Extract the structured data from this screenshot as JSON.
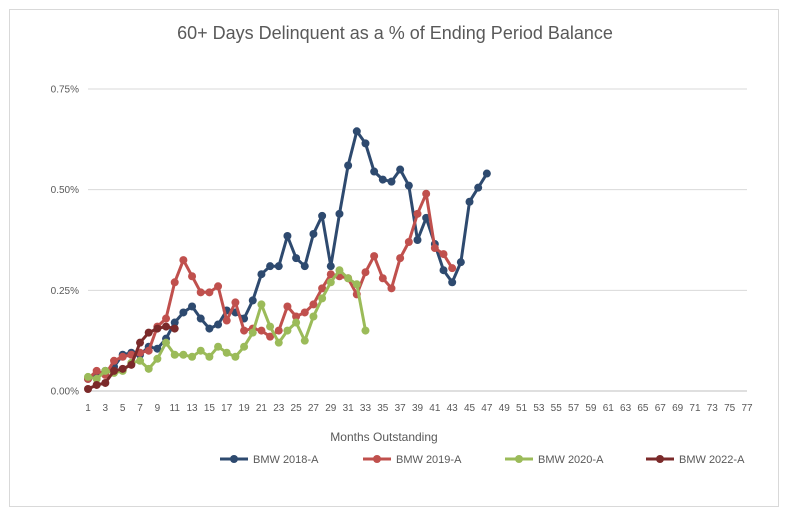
{
  "chart_data": {
    "type": "line",
    "title": "60+ Days Delinquent as a % of Ending Period Balance",
    "xlabel": "Months Outstanding",
    "ylabel": "",
    "xlim": [
      1,
      77
    ],
    "ylim": [
      0,
      0.75
    ],
    "y_ticks": [
      "0.00%",
      "0.25%",
      "0.50%",
      "0.75%"
    ],
    "y_tick_values": [
      0,
      0.25,
      0.5,
      0.75
    ],
    "x_ticks": [
      "1",
      "3",
      "5",
      "7",
      "9",
      "11",
      "13",
      "15",
      "17",
      "19",
      "21",
      "23",
      "25",
      "27",
      "29",
      "31",
      "33",
      "35",
      "37",
      "39",
      "41",
      "43",
      "45",
      "47",
      "49",
      "51",
      "53",
      "55",
      "57",
      "59",
      "61",
      "63",
      "65",
      "67",
      "69",
      "71",
      "73",
      "75",
      "77"
    ],
    "x_tick_values": [
      1,
      3,
      5,
      7,
      9,
      11,
      13,
      15,
      17,
      19,
      21,
      23,
      25,
      27,
      29,
      31,
      33,
      35,
      37,
      39,
      41,
      43,
      45,
      47,
      49,
      51,
      53,
      55,
      57,
      59,
      61,
      63,
      65,
      67,
      69,
      71,
      73,
      75,
      77
    ],
    "grid": true,
    "legend_position": "bottom",
    "series": [
      {
        "name": "BMW 2018-A",
        "color": "#2e4a6f",
        "x": [
          1,
          2,
          3,
          4,
          5,
          6,
          7,
          8,
          9,
          10,
          11,
          12,
          13,
          14,
          15,
          16,
          17,
          18,
          19,
          20,
          21,
          22,
          23,
          24,
          25,
          26,
          27,
          28,
          29,
          30,
          31,
          32,
          33,
          34,
          35,
          36,
          37,
          38,
          39,
          40,
          41,
          42,
          43,
          44,
          45,
          46,
          47
        ],
        "values": [
          0.03,
          0.04,
          0.05,
          0.06,
          0.09,
          0.095,
          0.09,
          0.11,
          0.105,
          0.13,
          0.17,
          0.195,
          0.21,
          0.18,
          0.155,
          0.165,
          0.2,
          0.195,
          0.18,
          0.225,
          0.29,
          0.31,
          0.31,
          0.385,
          0.33,
          0.31,
          0.39,
          0.435,
          0.31,
          0.44,
          0.56,
          0.645,
          0.615,
          0.545,
          0.525,
          0.52,
          0.55,
          0.51,
          0.375,
          0.43,
          0.365,
          0.3,
          0.27,
          0.32,
          0.47,
          0.505,
          0.54
        ]
      },
      {
        "name": "BMW 2019-A",
        "color": "#c0504d",
        "x": [
          1,
          2,
          3,
          4,
          5,
          6,
          7,
          8,
          9,
          10,
          11,
          12,
          13,
          14,
          15,
          16,
          17,
          18,
          19,
          20,
          21,
          22,
          23,
          24,
          25,
          26,
          27,
          28,
          29,
          30,
          31,
          32,
          33,
          34,
          35,
          36,
          37,
          38,
          39,
          40,
          41,
          42,
          43
        ],
        "values": [
          0.03,
          0.05,
          0.04,
          0.075,
          0.085,
          0.09,
          0.095,
          0.1,
          0.16,
          0.18,
          0.27,
          0.325,
          0.285,
          0.245,
          0.245,
          0.26,
          0.175,
          0.22,
          0.15,
          0.155,
          0.15,
          0.135,
          0.15,
          0.21,
          0.185,
          0.195,
          0.215,
          0.255,
          0.29,
          0.285,
          0.28,
          0.24,
          0.295,
          0.335,
          0.28,
          0.255,
          0.33,
          0.37,
          0.44,
          0.49,
          0.355,
          0.34,
          0.305
        ]
      },
      {
        "name": "BMW 2020-A",
        "color": "#9bbb59",
        "x": [
          1,
          2,
          3,
          4,
          5,
          6,
          7,
          8,
          9,
          10,
          11,
          12,
          13,
          14,
          15,
          16,
          17,
          18,
          19,
          20,
          21,
          22,
          23,
          24,
          25,
          26,
          27,
          28,
          29,
          30,
          31,
          32,
          33
        ],
        "values": [
          0.035,
          0.03,
          0.05,
          0.045,
          0.05,
          0.07,
          0.075,
          0.055,
          0.08,
          0.12,
          0.09,
          0.09,
          0.085,
          0.1,
          0.085,
          0.11,
          0.095,
          0.085,
          0.11,
          0.145,
          0.215,
          0.16,
          0.12,
          0.15,
          0.17,
          0.125,
          0.185,
          0.23,
          0.27,
          0.3,
          0.28,
          0.265,
          0.15
        ]
      },
      {
        "name": "BMW 2022-A",
        "color": "#7b2a2a",
        "x": [
          1,
          2,
          3,
          4,
          5,
          6,
          7,
          8,
          9,
          10,
          11
        ],
        "values": [
          0.005,
          0.015,
          0.02,
          0.05,
          0.055,
          0.065,
          0.12,
          0.145,
          0.155,
          0.16,
          0.155
        ]
      }
    ]
  }
}
